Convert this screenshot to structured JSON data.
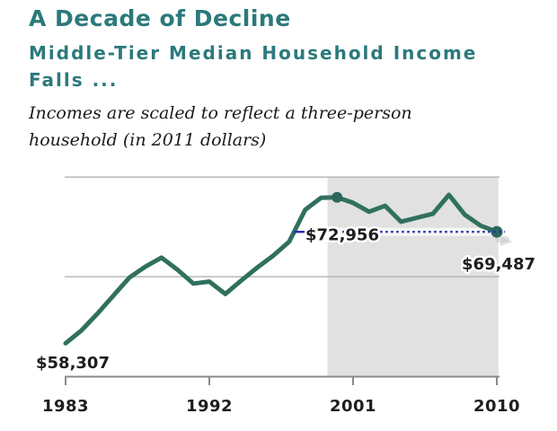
{
  "header": {
    "kicker": "A Decade of Decline",
    "title_lines": [
      "Middle-Tier Median Household Income",
      "Falls ..."
    ],
    "note_lines": [
      "Incomes are scaled to reflect a three-person",
      "household (in 2011 dollars)"
    ]
  },
  "chart_data": {
    "type": "line",
    "title": "A Decade of Decline — Middle-Tier Median Household Income Falls ...",
    "subtitle": "Incomes are scaled to reflect a three-person household (in 2011 dollars)",
    "x": [
      1983,
      1984,
      1985,
      1986,
      1987,
      1988,
      1989,
      1990,
      1991,
      1992,
      1993,
      1994,
      1995,
      1996,
      1997,
      1998,
      1999,
      2000,
      2001,
      2002,
      2003,
      2004,
      2005,
      2006,
      2007,
      2008,
      2009,
      2010
    ],
    "series": [
      {
        "name": "Middle-tier median household income (2011 dollars)",
        "values": [
          58307,
          59600,
          61300,
          63100,
          64900,
          66000,
          66900,
          65700,
          64300,
          64500,
          63250,
          64600,
          65900,
          67100,
          68500,
          71700,
          72900,
          72956,
          72400,
          71500,
          72100,
          70500,
          70900,
          71300,
          73200,
          71200,
          70100,
          69487
        ]
      }
    ],
    "xlabel": "",
    "ylabel": "",
    "x_ticks": [
      1983,
      1992,
      2001,
      2010
    ],
    "x_tick_labels": [
      "1983",
      "1992",
      "2001",
      "2010"
    ],
    "ylim": [
      55000,
      76000
    ],
    "gridline_values": [
      75000,
      65000
    ],
    "legend": "none",
    "shaded_region": {
      "start_year": 1999.4,
      "end_year": 2010.1
    },
    "reference_line": {
      "value": 69487,
      "start_year": 1997.3,
      "style": "dotted"
    },
    "annotations": [
      {
        "year": 1983,
        "value": 58307,
        "label": "$58,307",
        "marker": true
      },
      {
        "year": 2000,
        "value": 72956,
        "label": "$72,956",
        "marker": true
      },
      {
        "year": 2010,
        "value": 69487,
        "label": "$69,487",
        "marker": true
      }
    ],
    "colors": {
      "heading": "#2b797b",
      "line": "#30705f",
      "point": "#2c685a",
      "reference": "#2230a8",
      "shade": "#e1e1e1"
    }
  }
}
